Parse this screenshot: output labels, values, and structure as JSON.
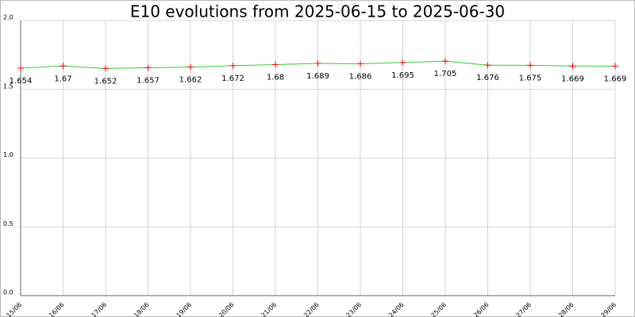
{
  "chart_data": {
    "type": "line",
    "title": "E10 evolutions from 2025-06-15 to 2025-06-30",
    "categories": [
      "15/06",
      "16/06",
      "17/06",
      "18/06",
      "19/06",
      "20/06",
      "21/06",
      "22/06",
      "23/06",
      "24/06",
      "25/06",
      "26/06",
      "27/06",
      "28/06",
      "29/06"
    ],
    "series": [
      {
        "name": "E10",
        "color": "#33cc33",
        "marker_color": "#ff0000",
        "values": [
          1.654,
          1.67,
          1.652,
          1.657,
          1.662,
          1.672,
          1.68,
          1.689,
          1.686,
          1.695,
          1.705,
          1.676,
          1.675,
          1.669,
          1.669
        ]
      }
    ],
    "ylim": [
      0,
      2
    ],
    "yticks": [
      {
        "value": 0,
        "label": "0.0"
      },
      0.5,
      {
        "value": 1,
        "label": "1.0"
      },
      1.5,
      {
        "value": 2,
        "label": "2.0"
      }
    ],
    "grid": true
  }
}
